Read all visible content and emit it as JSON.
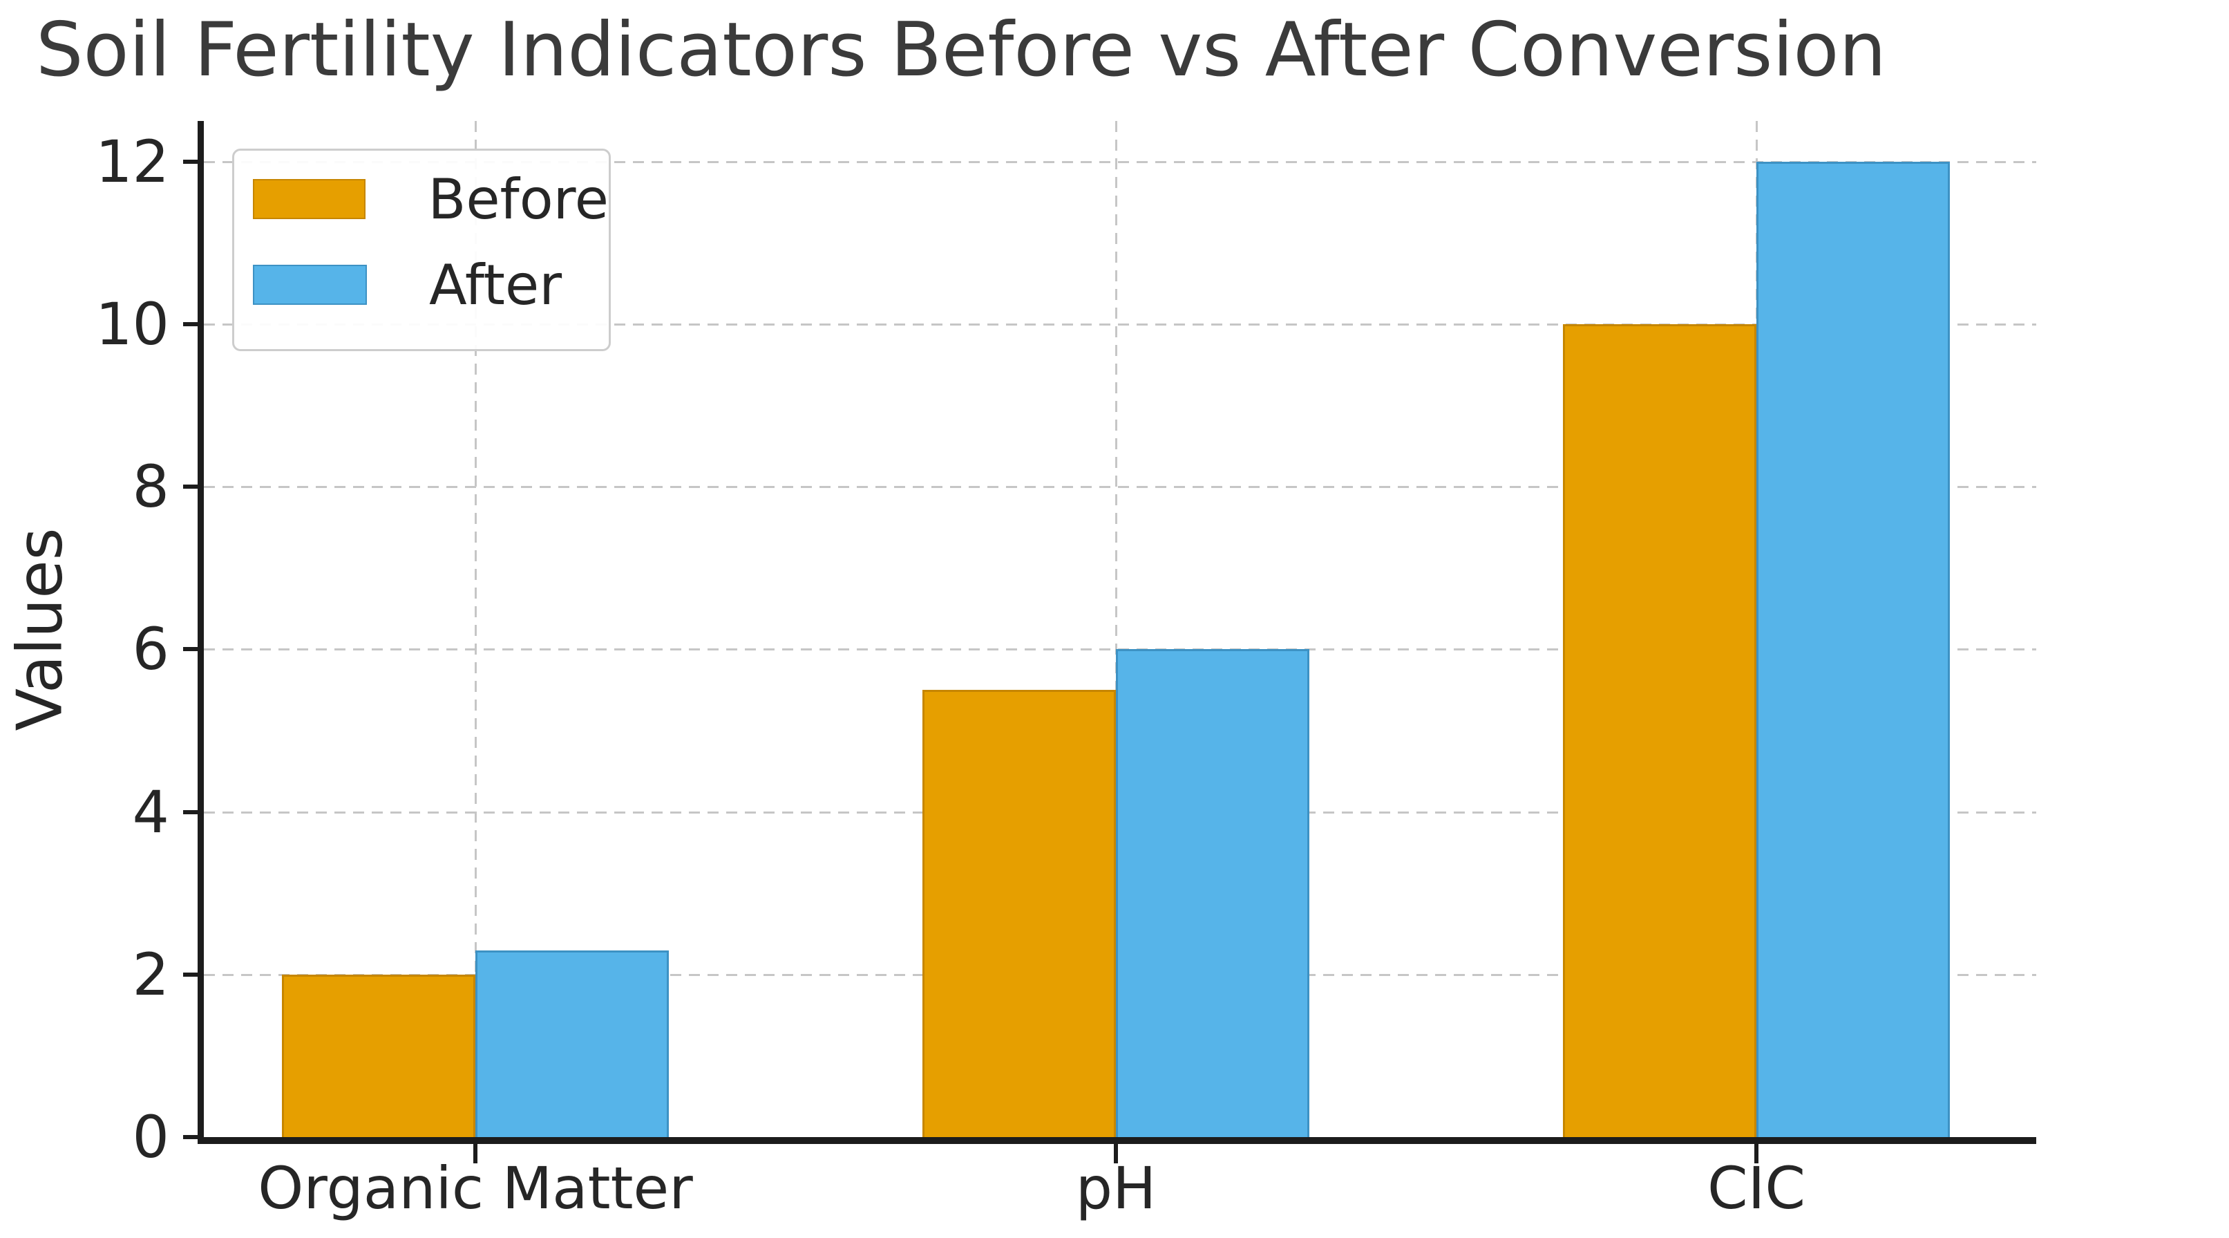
{
  "chart_data": {
    "type": "bar",
    "title": "Soil Fertility Indicators Before vs After Conversion",
    "xlabel": "",
    "ylabel": "Values",
    "categories": [
      "Organic Matter",
      "pH",
      "CIC"
    ],
    "series": [
      {
        "name": "Before",
        "color": "#E69F00",
        "edge_color": "#bohack",
        "values": [
          2.0,
          5.5,
          10.0
        ]
      },
      {
        "name": "After",
        "color": "#56B4E9",
        "edge_color": "#2B7FB8",
        "values": [
          2.3,
          6.0,
          12.0
        ]
      }
    ],
    "ylim": [
      0,
      12.5
    ],
    "y_ticks": [
      0,
      2,
      4,
      6,
      8,
      10,
      12
    ],
    "grid": "both-dashed",
    "legend_position": "upper-left"
  },
  "colors": {
    "title_text": "#3b3b3b",
    "tick_text": "#262626",
    "grid": "#c6c6c6",
    "spine": "#1c1c1c",
    "legend_border": "#cdcdcd",
    "before_bar": "#E69F00",
    "after_bar": "#56B4E9"
  }
}
